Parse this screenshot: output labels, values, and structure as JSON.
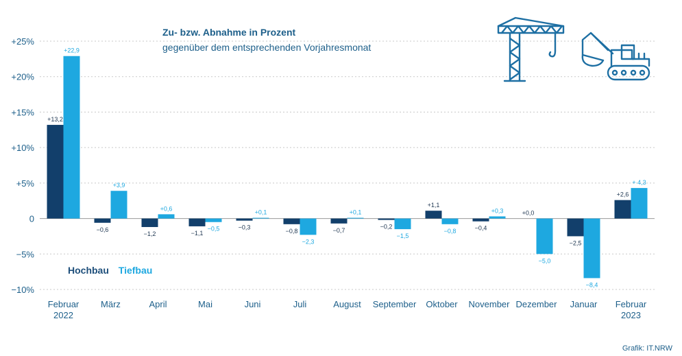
{
  "chart_data": {
    "type": "bar",
    "title": "Zu- bzw. Abnahme in Prozent",
    "subtitle": "gegenüber dem entsprechenden Vorjahresmonat",
    "categories": [
      "Februar\n2022",
      "März",
      "April",
      "Mai",
      "Juni",
      "Juli",
      "August",
      "September",
      "Oktober",
      "November",
      "Dezember",
      "Januar",
      "Februar\n2023"
    ],
    "series": [
      {
        "name": "Hochbau",
        "color": "#123f6b",
        "values": [
          13.2,
          -0.6,
          -1.2,
          -1.1,
          -0.3,
          -0.8,
          -0.7,
          -0.2,
          1.1,
          -0.4,
          0.0,
          -2.5,
          2.6
        ],
        "labels": [
          "+13,2",
          "−0,6",
          "−1,2",
          "−1,1",
          "−0,3",
          "−0,8",
          "−0,7",
          "−0,2",
          "+1,1",
          "−0,4",
          "+0,0",
          "−2,5",
          "+2,6"
        ]
      },
      {
        "name": "Tiefbau",
        "color": "#1ea8e0",
        "values": [
          22.9,
          3.9,
          0.6,
          -0.5,
          0.1,
          -2.3,
          0.1,
          -1.5,
          -0.8,
          0.3,
          -5.0,
          -8.4,
          4.3
        ],
        "labels": [
          "+22,9",
          "+3,9",
          "+0,6",
          "−0,5",
          "+0,1",
          "−2,3",
          "+0,1",
          "−1,5",
          "−0,8",
          "+0,3",
          "−5,0",
          "−8,4",
          "+ 4,3"
        ]
      }
    ],
    "yticks": [
      25,
      20,
      15,
      10,
      5,
      0,
      -5,
      -10
    ],
    "ytick_labels": [
      "+25%",
      "+20%",
      "+15%",
      "+10%",
      "+5%",
      "0",
      "−5%",
      "−10%"
    ],
    "ylim": [
      -10,
      25
    ],
    "grid": true,
    "legend": "bottom-left"
  },
  "source": "Grafik: IT.NRW",
  "icons": [
    "crane-icon",
    "excavator-icon"
  ]
}
